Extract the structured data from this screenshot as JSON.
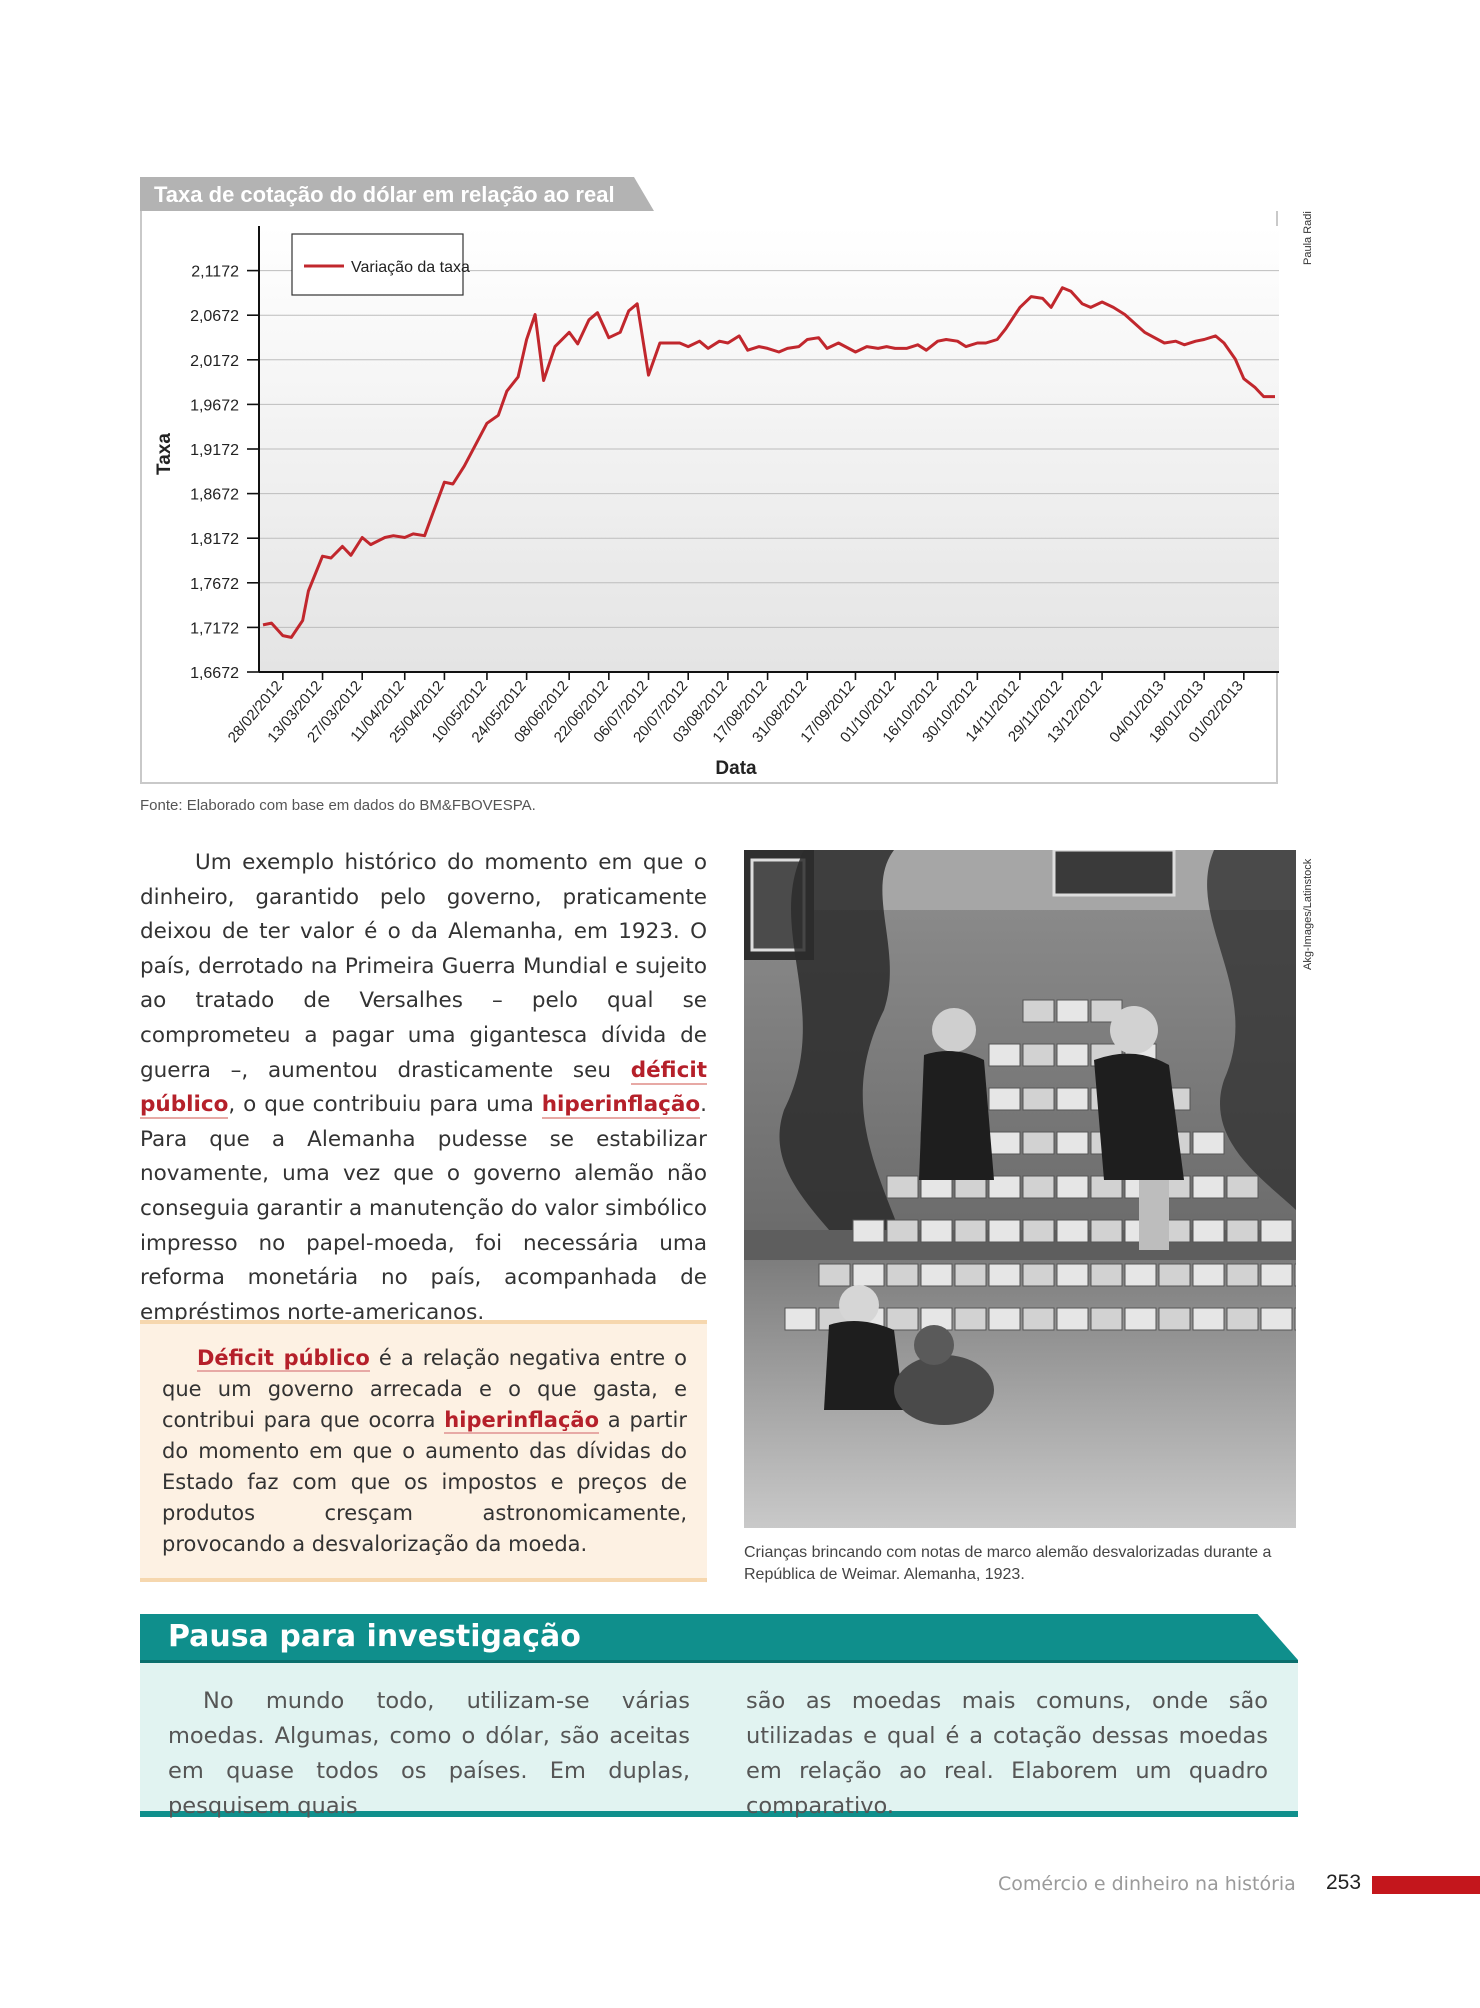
{
  "chart": {
    "tab_title": "Taxa de cotação do dólar em relação ao real",
    "credit": "Paula Radi",
    "source": "Fonte: Elaborado com base em dados do BM&FBOVESPA."
  },
  "chart_data": {
    "type": "line",
    "title": "Taxa de cotação do dólar em relação ao real",
    "xlabel": "Data",
    "ylabel": "Taxa",
    "legend": "top-left",
    "grid": true,
    "line_color": "#c1272d",
    "yticks": [
      "2,1172",
      "2,0672",
      "2,0172",
      "1,9672",
      "1,9172",
      "1,8672",
      "1,8172",
      "1,7672",
      "1,7172",
      "1,6672"
    ],
    "ylim": [
      1.6672,
      2.1672
    ],
    "xticks": [
      "28/02/2012",
      "13/03/2012",
      "27/03/2012",
      "11/04/2012",
      "25/04/2012",
      "10/05/2012",
      "24/05/2012",
      "08/06/2012",
      "22/06/2012",
      "06/07/2012",
      "20/07/2012",
      "03/08/2012",
      "17/08/2012",
      "31/08/2012",
      "17/09/2012",
      "01/10/2012",
      "16/10/2012",
      "30/10/2012",
      "14/11/2012",
      "29/11/2012",
      "13/12/2012",
      "04/01/2013",
      "18/01/2013",
      "01/02/2013"
    ],
    "series": [
      {
        "name": "Variação da taxa",
        "x": [
          "21/02/2012",
          "24/02/2012",
          "28/02/2012",
          "02/03/2012",
          "06/03/2012",
          "08/03/2012",
          "13/03/2012",
          "16/03/2012",
          "20/03/2012",
          "23/03/2012",
          "27/03/2012",
          "30/03/2012",
          "04/04/2012",
          "07/04/2012",
          "11/04/2012",
          "14/04/2012",
          "18/04/2012",
          "21/04/2012",
          "25/04/2012",
          "28/04/2012",
          "02/05/2012",
          "06/05/2012",
          "10/05/2012",
          "14/05/2012",
          "17/05/2012",
          "21/05/2012",
          "24/05/2012",
          "27/05/2012",
          "30/05/2012",
          "03/06/2012",
          "08/06/2012",
          "11/06/2012",
          "15/06/2012",
          "18/06/2012",
          "22/06/2012",
          "26/06/2012",
          "29/06/2012",
          "02/07/2012",
          "06/07/2012",
          "10/07/2012",
          "13/07/2012",
          "17/07/2012",
          "20/07/2012",
          "24/07/2012",
          "27/07/2012",
          "31/07/2012",
          "03/08/2012",
          "07/08/2012",
          "10/08/2012",
          "14/08/2012",
          "17/08/2012",
          "21/08/2012",
          "24/08/2012",
          "28/08/2012",
          "31/08/2012",
          "04/09/2012",
          "07/09/2012",
          "11/09/2012",
          "17/09/2012",
          "21/09/2012",
          "25/09/2012",
          "28/09/2012",
          "01/10/2012",
          "05/10/2012",
          "09/10/2012",
          "12/10/2012",
          "16/10/2012",
          "19/10/2012",
          "23/10/2012",
          "26/10/2012",
          "30/10/2012",
          "02/11/2012",
          "06/11/2012",
          "09/11/2012",
          "14/11/2012",
          "18/11/2012",
          "22/11/2012",
          "25/11/2012",
          "29/11/2012",
          "02/12/2012",
          "06/12/2012",
          "09/12/2012",
          "13/12/2012",
          "17/12/2012",
          "21/12/2012",
          "28/12/2012",
          "04/01/2013",
          "08/01/2013",
          "11/01/2013",
          "15/01/2013",
          "18/01/2013",
          "22/01/2013",
          "25/01/2013",
          "29/01/2013",
          "01/02/2013",
          "05/02/2013",
          "08/02/2013",
          "12/02/2013"
        ],
        "values": [
          1.72,
          1.722,
          1.708,
          1.706,
          1.725,
          1.758,
          1.797,
          1.795,
          1.808,
          1.798,
          1.818,
          1.81,
          1.818,
          1.82,
          1.818,
          1.822,
          1.82,
          1.846,
          1.88,
          1.878,
          1.898,
          1.922,
          1.946,
          1.955,
          1.982,
          1.998,
          2.04,
          2.068,
          1.994,
          2.032,
          2.048,
          2.035,
          2.062,
          2.07,
          2.042,
          2.048,
          2.072,
          2.08,
          2.0,
          2.036,
          2.036,
          2.036,
          2.032,
          2.038,
          2.03,
          2.038,
          2.036,
          2.044,
          2.028,
          2.032,
          2.03,
          2.026,
          2.03,
          2.032,
          2.04,
          2.042,
          2.03,
          2.036,
          2.026,
          2.032,
          2.03,
          2.032,
          2.03,
          2.03,
          2.034,
          2.028,
          2.038,
          2.04,
          2.038,
          2.032,
          2.036,
          2.036,
          2.04,
          2.052,
          2.076,
          2.088,
          2.086,
          2.076,
          2.098,
          2.094,
          2.08,
          2.076,
          2.082,
          2.076,
          2.068,
          2.048,
          2.036,
          2.038,
          2.034,
          2.038,
          2.04,
          2.044,
          2.036,
          2.018,
          1.996,
          1.986,
          1.976,
          1.976
        ]
      }
    ]
  },
  "main_text": {
    "p1": "Um exemplo histórico do momento em que o dinheiro, garantido pelo governo, praticamente deixou de ter valor é o da Alemanha, em 1923. O país, derrotado na Primeira Guerra Mundial e sujeito ao tratado de Versalhes – pelo qual se comprometeu a pagar uma gigantesca dívida de guerra –, aumentou drasticamente seu ",
    "term1": "déficit público",
    "p2": ", o que contribuiu para uma ",
    "term2": "hiperinflação",
    "p3": ". Para que a Alemanha pudesse se estabilizar novamente, uma vez que o governo alemão não conseguia garantir a manutenção do valor simbólico impresso no papel-moeda, foi necessária uma reforma monetária no país, acompanhada de empréstimos norte-americanos."
  },
  "definition": {
    "term1": "Déficit público",
    "t1": " é a relação negativa entre o que um governo arrecada e o que gasta, e contribui para que ocorra ",
    "term2": "hiperinflação",
    "t2": " a partir do momento em que o aumento das dívidas do Estado faz com que os impostos e preços de produtos cresçam astronomicamente, provocando a desvalorização da moeda."
  },
  "photo": {
    "credit": "Akg-Images/Latinstock",
    "caption": "Crianças brincando com notas de marco alemão desvalorizadas durante a República de Weimar. Alemanha, 1923."
  },
  "pausa": {
    "title": "Pausa para investigação",
    "left": "No mundo todo, utilizam-se várias moedas. Algumas, como o dólar, são aceitas em quase todos os países. Em duplas, pesquisem quais",
    "right": "são as moedas mais comuns, onde são utilizadas e qual é a cotação dessas moedas em relação ao real. Elaborem um quadro comparativo."
  },
  "footer": {
    "chapter": "Comércio e dinheiro na história",
    "page": "253"
  },
  "colors": {
    "accent_red": "#c4161c",
    "teal": "#0f8f8c",
    "def_bg": "#fdf1e3"
  }
}
